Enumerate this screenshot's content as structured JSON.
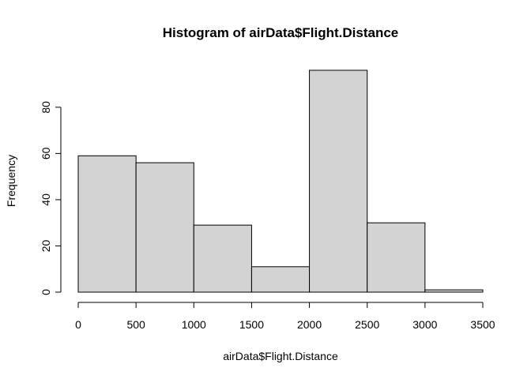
{
  "chart_data": {
    "type": "bar",
    "title": "Histogram of airData$Flight.Distance",
    "xlabel": "airData$Flight.Distance",
    "ylabel": "Frequency",
    "bins": [
      {
        "start": 0,
        "end": 500,
        "value": 59
      },
      {
        "start": 500,
        "end": 1000,
        "value": 56
      },
      {
        "start": 1000,
        "end": 1500,
        "value": 29
      },
      {
        "start": 1500,
        "end": 2000,
        "value": 11
      },
      {
        "start": 2000,
        "end": 2500,
        "value": 96
      },
      {
        "start": 2500,
        "end": 3000,
        "value": 30
      },
      {
        "start": 3000,
        "end": 3500,
        "value": 1
      }
    ],
    "xlim": [
      0,
      3500
    ],
    "ylim": [
      0,
      96
    ],
    "xticks": [
      "0",
      "500",
      "1000",
      "1500",
      "2000",
      "2500",
      "3000",
      "3500"
    ],
    "yticks": [
      "0",
      "20",
      "40",
      "60",
      "80"
    ],
    "bar_color": "#d3d3d3",
    "grid": false
  }
}
